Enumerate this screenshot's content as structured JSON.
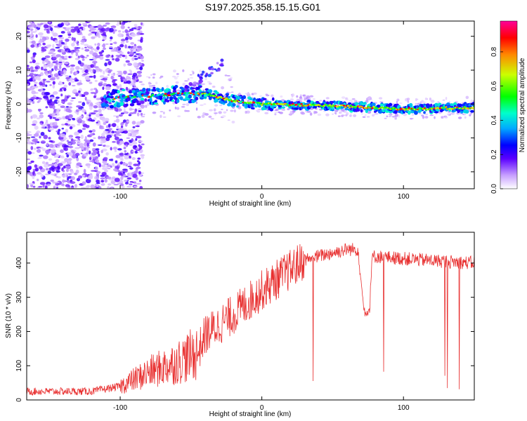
{
  "figure": {
    "title": "S197.2025.358.15.15.G01"
  },
  "chart_data": [
    {
      "type": "heatmap",
      "xlabel": "Height of straight line (km)",
      "ylabel": "Frequency (Hz)",
      "xlim": [
        -166,
        150
      ],
      "ylim": [
        -25,
        24.5
      ],
      "xticks": [
        -100,
        0,
        100
      ],
      "yticks": [
        -20,
        -10,
        0,
        10,
        20
      ],
      "colorbar": {
        "label": "Normalized spectral amplitude",
        "range": [
          0,
          0.98
        ],
        "ticks": [
          "0.0",
          "0.2",
          "0.4",
          "0.6",
          "0.8"
        ]
      },
      "ridge": [
        {
          "x": -110,
          "f": 1.5
        },
        {
          "x": -60,
          "f": 3.0
        },
        {
          "x": -40,
          "f": 3.0
        },
        {
          "x": -20,
          "f": 1.0
        },
        {
          "x": 0,
          "f": 0.0
        },
        {
          "x": 50,
          "f": -0.5
        },
        {
          "x": 100,
          "f": -1.5
        },
        {
          "x": 150,
          "f": -1.0
        }
      ]
    },
    {
      "type": "line",
      "xlabel": "Height of straight line (km)",
      "ylabel": "SNR (10 * v/v)",
      "xlim": [
        -166,
        150
      ],
      "ylim": [
        0,
        490
      ],
      "xticks": [
        -100,
        0,
        100
      ],
      "yticks": [
        0,
        100,
        200,
        300,
        400
      ],
      "color": "#e83030",
      "trend": [
        {
          "x": -166,
          "y": 25
        },
        {
          "x": -120,
          "y": 25
        },
        {
          "x": -100,
          "y": 40
        },
        {
          "x": -80,
          "y": 80
        },
        {
          "x": -60,
          "y": 110
        },
        {
          "x": -45,
          "y": 140
        },
        {
          "x": -40,
          "y": 190
        },
        {
          "x": -20,
          "y": 250
        },
        {
          "x": 0,
          "y": 320
        },
        {
          "x": 20,
          "y": 380
        },
        {
          "x": 30,
          "y": 410
        },
        {
          "x": 60,
          "y": 440
        },
        {
          "x": 68,
          "y": 440
        },
        {
          "x": 72,
          "y": 260
        },
        {
          "x": 76,
          "y": 260
        },
        {
          "x": 78,
          "y": 420
        },
        {
          "x": 110,
          "y": 410
        },
        {
          "x": 150,
          "y": 400
        }
      ],
      "dropouts": [
        [
          35,
          40
        ],
        [
          40,
          150
        ]
      ]
    }
  ]
}
